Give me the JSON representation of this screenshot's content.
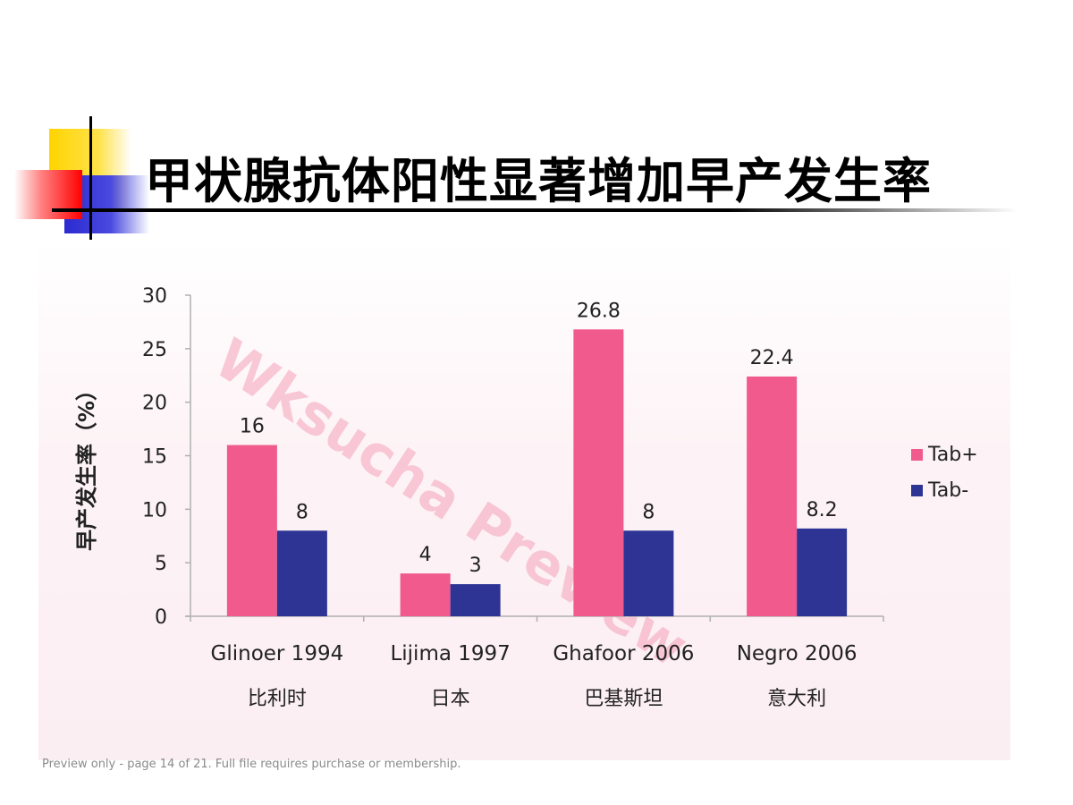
{
  "slide": {
    "title": "甲状腺抗体阳性显著增加早产发生率",
    "watermark": "Wksucha Preview",
    "footer": "Preview only - page 14 of 21. Full file requires purchase or membership."
  },
  "colors": {
    "tab_pos": "#f05a8c",
    "tab_neg": "#2e3494",
    "axis": "#b0b0b0",
    "watermark": "#f4a0b8"
  },
  "chart_data": {
    "type": "bar",
    "categories": [
      "Glinoer 1994",
      "Lijima 1997",
      "Ghafoor 2006",
      "Negro 2006"
    ],
    "category_sublabels": [
      "比利时",
      "日本",
      "巴基斯坦",
      "意大利"
    ],
    "series": [
      {
        "name": "Tab+",
        "values": [
          16,
          4,
          26.8,
          22.4
        ],
        "labels": [
          "16",
          "4",
          "26.8",
          "22.4"
        ]
      },
      {
        "name": "Tab-",
        "values": [
          8,
          3,
          8,
          8.2
        ],
        "labels": [
          "8",
          "3",
          "8",
          "8.2"
        ]
      }
    ],
    "ylabel": "早产发生率（%）",
    "xlabel": "",
    "ylim": [
      0,
      30
    ],
    "yticks": [
      "0",
      "5",
      "10",
      "15",
      "20",
      "25",
      "30"
    ],
    "grid": false,
    "legend_position": "right"
  }
}
